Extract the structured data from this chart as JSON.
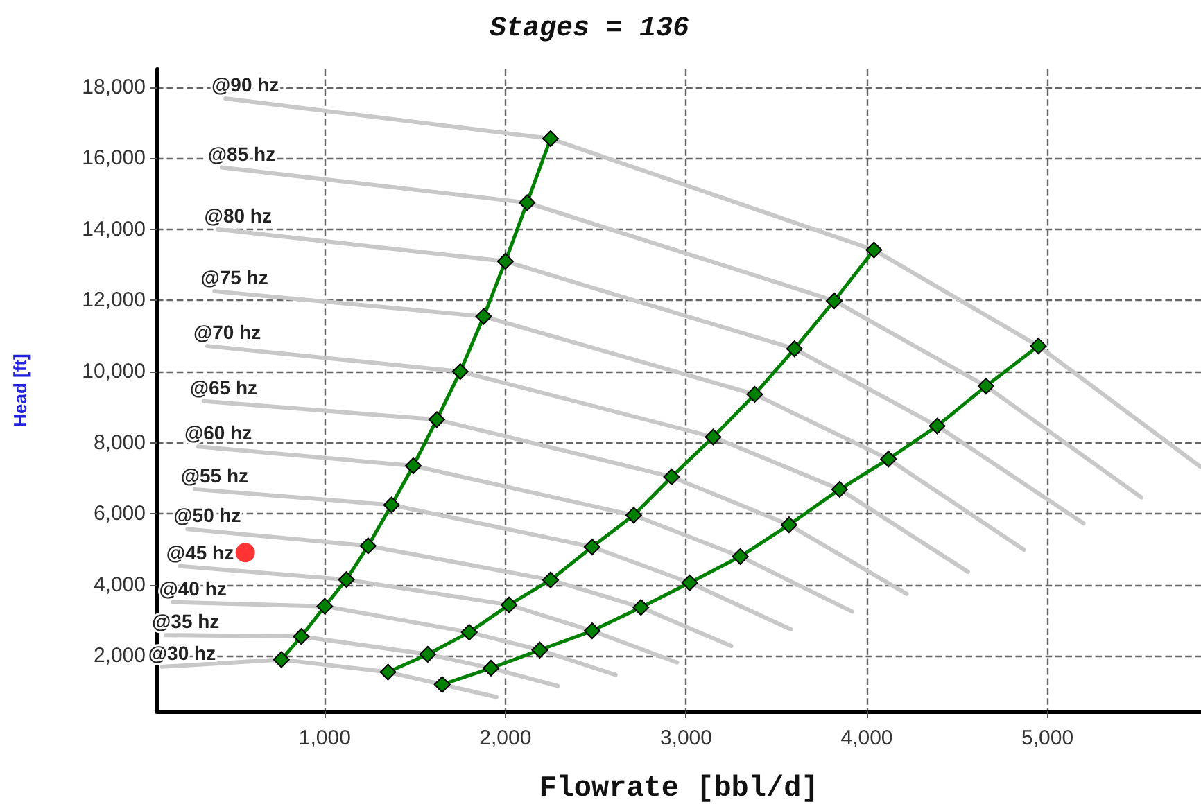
{
  "chart_data": {
    "type": "line",
    "title": "Stages = 136",
    "xlabel": "Flowrate [bbl/d]",
    "ylabel": "Head [ft]",
    "xlim": [
      70,
      5850
    ],
    "ylim": [
      450,
      18500
    ],
    "xticks": [
      {
        "value": 1000,
        "label": "1,000"
      },
      {
        "value": 2000,
        "label": "2,000"
      },
      {
        "value": 3000,
        "label": "3,000"
      },
      {
        "value": 4000,
        "label": "4,000"
      },
      {
        "value": 5000,
        "label": "5,000"
      }
    ],
    "yticks": [
      {
        "value": 2000,
        "label": "2,000"
      },
      {
        "value": 4000,
        "label": "4,000"
      },
      {
        "value": 6000,
        "label": "6,000"
      },
      {
        "value": 8000,
        "label": "8,000"
      },
      {
        "value": 10000,
        "label": "10,000"
      },
      {
        "value": 12000,
        "label": "12,000"
      },
      {
        "value": 14000,
        "label": "14,000"
      },
      {
        "value": 16000,
        "label": "16,000"
      },
      {
        "value": 18000,
        "label": "18,000"
      }
    ],
    "grid": true,
    "marker": "diamond",
    "line_style": "solid",
    "series": [
      {
        "name": "@30 hz",
        "color": "#c8c8c8",
        "marker": "none",
        "x": [
          100,
          760,
          1350,
          1650,
          1950
        ],
        "values": [
          1700,
          1900,
          1550,
          1200,
          850
        ]
      },
      {
        "name": "@35 hz",
        "color": "#c8c8c8",
        "marker": "none",
        "x": [
          120,
          870,
          1570,
          1920,
          2290
        ],
        "values": [
          2590,
          2550,
          2050,
          1660,
          1160
        ]
      },
      {
        "name": "@40 hz",
        "color": "#c8c8c8",
        "marker": "none",
        "x": [
          160,
          1000,
          1800,
          2190,
          2610
        ],
        "values": [
          3520,
          3400,
          2670,
          2170,
          1470
        ]
      },
      {
        "name": "@45 hz",
        "color": "#c8c8c8",
        "marker": "none",
        "x": [
          200,
          1120,
          2020,
          2480,
          2950
        ],
        "values": [
          4530,
          4150,
          3440,
          2710,
          1820
        ]
      },
      {
        "name": "@50 hz",
        "color": "#c8c8c8",
        "marker": "none",
        "x": [
          240,
          1240,
          2250,
          2750,
          3250
        ],
        "values": [
          5570,
          5100,
          4140,
          3370,
          2280
        ]
      },
      {
        "name": "@55 hz",
        "color": "#c8c8c8",
        "marker": "none",
        "x": [
          280,
          1370,
          2480,
          3020,
          3580
        ],
        "values": [
          6690,
          6250,
          5070,
          4060,
          2750
        ]
      },
      {
        "name": "@60 hz",
        "color": "#c8c8c8",
        "marker": "none",
        "x": [
          300,
          1490,
          2710,
          3300,
          3920
        ],
        "values": [
          7890,
          7350,
          5960,
          4800,
          3250
        ]
      },
      {
        "name": "@65 hz",
        "color": "#c8c8c8",
        "marker": "none",
        "x": [
          330,
          1620,
          2920,
          3570,
          4220
        ],
        "values": [
          9170,
          8650,
          7040,
          5690,
          3750
        ]
      },
      {
        "name": "@70 hz",
        "color": "#c8c8c8",
        "marker": "none",
        "x": [
          350,
          1750,
          3150,
          3850,
          4560
        ],
        "values": [
          10720,
          10000,
          8160,
          6690,
          4370
        ]
      },
      {
        "name": "@75 hz",
        "color": "#c8c8c8",
        "marker": "none",
        "x": [
          390,
          1880,
          3380,
          4120,
          4870
        ],
        "values": [
          12260,
          11550,
          9360,
          7540,
          4990
        ]
      },
      {
        "name": "@80 hz",
        "color": "#c8c8c8",
        "marker": "none",
        "x": [
          410,
          2000,
          3600,
          4390,
          5200
        ],
        "values": [
          14000,
          13100,
          10640,
          8470,
          5730
        ]
      },
      {
        "name": "@85 hz",
        "color": "#c8c8c8",
        "marker": "none",
        "x": [
          430,
          2120,
          3820,
          4660,
          5520
        ],
        "values": [
          15740,
          14750,
          11990,
          9590,
          6460
        ]
      },
      {
        "name": "@90 hz",
        "color": "#c8c8c8",
        "marker": "none",
        "x": [
          450,
          2250,
          4040,
          4950,
          5850
        ],
        "values": [
          17680,
          16550,
          13420,
          10720,
          7310
        ]
      },
      {
        "color": "#008000",
        "x": [
          760,
          870,
          1000,
          1120,
          1240,
          1370,
          1490,
          1620,
          1750,
          1880,
          2000,
          2120,
          2250
        ],
        "values": [
          1900,
          2550,
          3400,
          4150,
          5100,
          6250,
          7350,
          8650,
          10000,
          11550,
          13100,
          14750,
          16550
        ]
      },
      {
        "color": "#008000",
        "x": [
          1350,
          1570,
          1800,
          2020,
          2250,
          2480,
          2710,
          2920,
          3150,
          3380,
          3600,
          3820,
          4040
        ],
        "values": [
          1550,
          2050,
          2670,
          3440,
          4140,
          5070,
          5960,
          7040,
          8160,
          9360,
          10640,
          11990,
          13420
        ]
      },
      {
        "color": "#008000",
        "x": [
          1650,
          1920,
          2190,
          2480,
          2750,
          3020,
          3300,
          3570,
          3850,
          4120,
          4390,
          4660,
          4950
        ],
        "values": [
          1200,
          1660,
          2170,
          2710,
          3370,
          4060,
          4800,
          5690,
          6690,
          7540,
          8470,
          9590,
          10720
        ]
      },
      {
        "type": "scatter",
        "color": "#ff0000",
        "marker": "circle",
        "x": [
          560
        ],
        "values": [
          4910
        ]
      }
    ]
  }
}
